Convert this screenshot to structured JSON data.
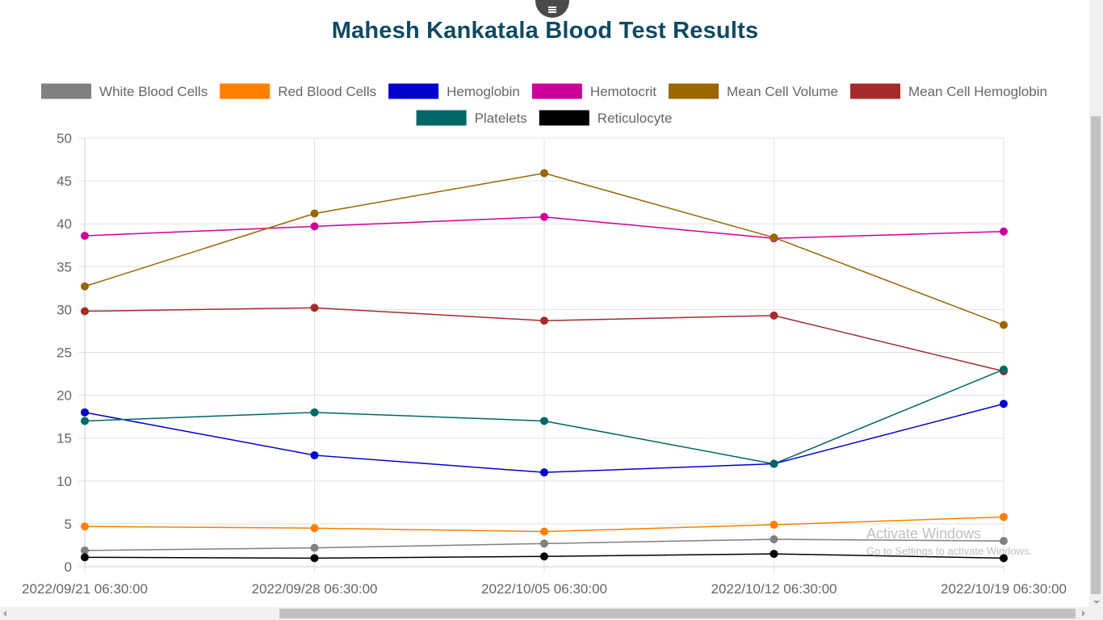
{
  "page": {
    "menu_icon": "hamburger-menu-icon"
  },
  "watermark": {
    "title": "Activate Windows",
    "subtitle": "Go to Settings to activate Windows."
  },
  "chart_data": {
    "type": "line",
    "title": "Mahesh Kankatala Blood Test Results",
    "xlabel": "",
    "ylabel": "",
    "ylim": [
      0,
      50
    ],
    "y_ticks": [
      0,
      5,
      10,
      15,
      20,
      25,
      30,
      35,
      40,
      45,
      50
    ],
    "grid": true,
    "legend_position": "top",
    "categories": [
      "2022/09/21 06:30:00",
      "2022/09/28 06:30:00",
      "2022/10/05 06:30:00",
      "2022/10/12 06:30:00",
      "2022/10/19 06:30:00"
    ],
    "series": [
      {
        "name": "White Blood Cells",
        "color": "#808080",
        "values": [
          1.9,
          2.2,
          2.7,
          3.2,
          3.0
        ]
      },
      {
        "name": "Red Blood Cells",
        "color": "#ff7f00",
        "values": [
          4.7,
          4.5,
          4.1,
          4.9,
          5.8
        ]
      },
      {
        "name": "Hemoglobin",
        "color": "#0000cc",
        "values": [
          18,
          13,
          11,
          12,
          19
        ]
      },
      {
        "name": "Hemotocrit",
        "color": "#cc0099",
        "values": [
          38.6,
          39.7,
          40.8,
          38.3,
          39.1
        ]
      },
      {
        "name": "Mean Cell Volume",
        "color": "#996600",
        "values": [
          32.7,
          41.2,
          45.9,
          38.4,
          28.2
        ]
      },
      {
        "name": "Mean Cell Hemoglobin",
        "color": "#a52a2a",
        "values": [
          29.8,
          30.2,
          28.7,
          29.3,
          22.8
        ]
      },
      {
        "name": "Platelets",
        "color": "#006666",
        "values": [
          17,
          18,
          17,
          12,
          23
        ]
      },
      {
        "name": "Reticulocyte",
        "color": "#000000",
        "values": [
          1.1,
          1.0,
          1.2,
          1.5,
          1.0
        ]
      }
    ]
  }
}
